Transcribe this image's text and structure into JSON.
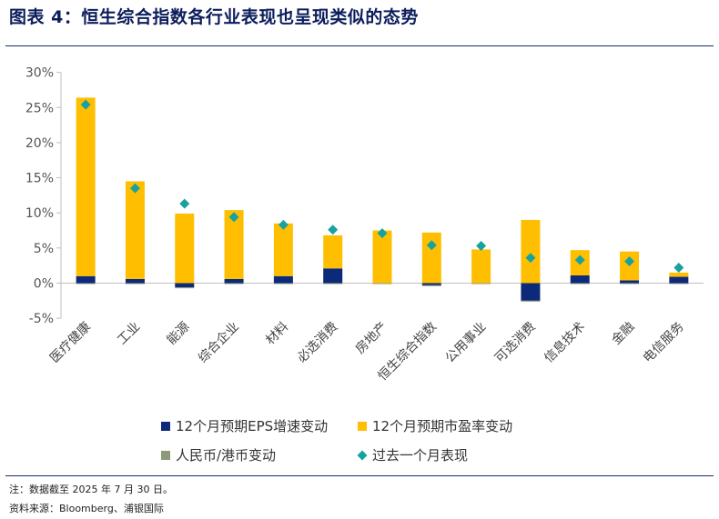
{
  "header": {
    "title": "图表 4：恒生综合指数各行业表现也呈现类似的态势"
  },
  "footer": {
    "note": "注：数据截至 2025 年 7 月 30 日。",
    "source": "资料来源：Bloomberg、浦银国际"
  },
  "colors": {
    "eps": "#0d2a7a",
    "pe": "#ffbf00",
    "fx": "#8c9a7a",
    "perf": "#17a2a0",
    "axis": "#bfbfbf",
    "rule": "#1a2a6c",
    "title": "#0c1d5c"
  },
  "chart_data": {
    "type": "bar",
    "stacked": true,
    "categories": [
      "医疗健康",
      "工业",
      "能源",
      "综合企业",
      "材料",
      "必选消费",
      "房地产",
      "恒生综合指数",
      "公用事业",
      "可选消费",
      "信息技术",
      "金融",
      "电信服务"
    ],
    "series": [
      {
        "name": "12个月预期EPS增速变动",
        "kind": "bar",
        "values": [
          1.0,
          0.6,
          -0.6,
          0.6,
          1.0,
          2.1,
          0.0,
          -0.3,
          0.0,
          -2.5,
          1.1,
          0.4,
          0.9
        ]
      },
      {
        "name": "12个月预期市盈率变动",
        "kind": "bar",
        "values": [
          25.4,
          13.9,
          9.9,
          9.8,
          7.5,
          4.7,
          7.5,
          7.2,
          4.8,
          9.0,
          3.6,
          4.1,
          0.6
        ]
      },
      {
        "name": "人民币/港币变动",
        "kind": "bar",
        "values": [
          -0.1,
          -0.1,
          -0.1,
          -0.1,
          -0.1,
          -0.1,
          -0.1,
          -0.1,
          -0.1,
          -0.1,
          -0.1,
          -0.1,
          -0.1
        ]
      },
      {
        "name": "过去一个月表现",
        "kind": "marker",
        "values": [
          25.4,
          13.5,
          11.3,
          9.4,
          8.3,
          7.6,
          7.1,
          5.4,
          5.3,
          3.6,
          3.3,
          3.1,
          2.2
        ]
      }
    ],
    "yticks": [
      "30%",
      "25%",
      "20%",
      "15%",
      "10%",
      "5%",
      "0%",
      "-5%"
    ],
    "ylim": [
      -5,
      30
    ],
    "legend_position": "bottom",
    "grid": false
  }
}
